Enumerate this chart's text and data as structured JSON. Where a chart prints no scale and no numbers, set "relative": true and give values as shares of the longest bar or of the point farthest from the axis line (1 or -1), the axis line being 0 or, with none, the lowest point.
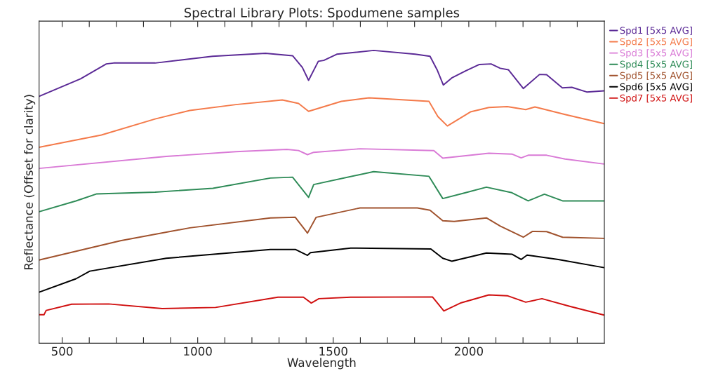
{
  "chart_data": {
    "type": "line",
    "title": "Spectral Library Plots: Spodumene samples",
    "xlabel": "Wavelength",
    "ylabel": "Reflectance (Offset for clarity)",
    "relative": true,
    "xlim": [
      415,
      2500
    ],
    "xticks": [
      500,
      {
        "value": 600,
        "label": null
      },
      {
        "value": 700,
        "label": null
      },
      {
        "value": 800,
        "label": null
      },
      {
        "value": 900,
        "label": null
      },
      1000,
      {
        "value": 1100,
        "label": null
      },
      {
        "value": 1200,
        "label": null
      },
      {
        "value": 1300,
        "label": null
      },
      {
        "value": 1400,
        "label": null
      },
      1500,
      {
        "value": 1600,
        "label": null
      },
      {
        "value": 1700,
        "label": null
      },
      {
        "value": 1800,
        "label": null
      },
      {
        "value": 1900,
        "label": null
      },
      2000,
      {
        "value": 2100,
        "label": null
      },
      {
        "value": 2200,
        "label": null
      },
      {
        "value": 2300,
        "label": null
      },
      {
        "value": 2400,
        "label": null
      }
    ],
    "grid": false,
    "legend": "top right",
    "marker": "none",
    "line_style": "solid",
    "series": [
      {
        "name": "Spd1 [5x5 AVG]",
        "color": "#5b2a96",
        "x": [
          415,
          568,
          663,
          690,
          843,
          1055,
          1250,
          1350,
          1386,
          1409,
          1445,
          1465,
          1513,
          1649,
          1802,
          1857,
          1883,
          1906,
          1937,
          1988,
          2039,
          2082,
          2116,
          2146,
          2201,
          2261,
          2287,
          2345,
          2380,
          2435,
          2499
        ],
        "values": [
          0.843,
          0.903,
          0.954,
          0.957,
          0.957,
          0.98,
          0.99,
          0.982,
          0.942,
          0.898,
          0.963,
          0.966,
          0.987,
          1.0,
          0.987,
          0.98,
          0.934,
          0.882,
          0.906,
          0.93,
          0.952,
          0.954,
          0.939,
          0.934,
          0.87,
          0.918,
          0.917,
          0.872,
          0.874,
          0.858,
          0.862
        ]
      },
      {
        "name": "Spd2 [5x5 AVG]",
        "color": "#f47a4a",
        "x": [
          415,
          645,
          843,
          971,
          1141,
          1312,
          1372,
          1409,
          1462,
          1530,
          1632,
          1853,
          1886,
          1921,
          2006,
          2074,
          2142,
          2210,
          2244,
          2355,
          2499
        ],
        "values": [
          0.669,
          0.711,
          0.766,
          0.795,
          0.815,
          0.831,
          0.819,
          0.792,
          0.807,
          0.826,
          0.838,
          0.826,
          0.774,
          0.742,
          0.79,
          0.805,
          0.808,
          0.798,
          0.807,
          0.781,
          0.75
        ]
      },
      {
        "name": "Spd3 [5x5 AVG]",
        "color": "#d97ad6",
        "x": [
          415,
          884,
          1141,
          1329,
          1372,
          1405,
          1428,
          1599,
          1871,
          1904,
          2074,
          2159,
          2193,
          2219,
          2287,
          2355,
          2499
        ],
        "values": [
          0.597,
          0.638,
          0.654,
          0.662,
          0.658,
          0.644,
          0.652,
          0.664,
          0.658,
          0.632,
          0.649,
          0.646,
          0.633,
          0.642,
          0.642,
          0.629,
          0.612
        ]
      },
      {
        "name": "Spd4 [5x5 AVG]",
        "color": "#2e8b57",
        "x": [
          415,
          551,
          628,
          843,
          1056,
          1268,
          1350,
          1409,
          1428,
          1649,
          1853,
          1904,
          1988,
          2065,
          2159,
          2219,
          2279,
          2346,
          2499
        ],
        "values": [
          0.449,
          0.486,
          0.51,
          0.516,
          0.529,
          0.564,
          0.567,
          0.498,
          0.542,
          0.586,
          0.57,
          0.494,
          0.514,
          0.533,
          0.514,
          0.486,
          0.509,
          0.486,
          0.486
        ]
      },
      {
        "name": "Spd5 [5x5 AVG]",
        "color": "#a0522d",
        "x": [
          415,
          715,
          971,
          1268,
          1360,
          1405,
          1437,
          1599,
          1810,
          1857,
          1904,
          1946,
          2065,
          2116,
          2201,
          2235,
          2287,
          2346,
          2499
        ],
        "values": [
          0.284,
          0.35,
          0.394,
          0.428,
          0.43,
          0.376,
          0.43,
          0.462,
          0.462,
          0.454,
          0.418,
          0.416,
          0.428,
          0.4,
          0.362,
          0.382,
          0.381,
          0.362,
          0.358
        ]
      },
      {
        "name": "Spd6 [5x5 AVG]",
        "color": "#000000",
        "x": [
          415,
          551,
          602,
          884,
          1268,
          1360,
          1405,
          1416,
          1564,
          1860,
          1904,
          1937,
          2065,
          2159,
          2193,
          2215,
          2330,
          2499
        ],
        "values": [
          0.174,
          0.22,
          0.246,
          0.29,
          0.32,
          0.32,
          0.3,
          0.309,
          0.325,
          0.322,
          0.29,
          0.28,
          0.308,
          0.304,
          0.286,
          0.301,
          0.286,
          0.258
        ]
      },
      {
        "name": "Spd7 [5x5 AVG]",
        "color": "#d01010",
        "x": [
          415,
          433,
          441,
          535,
          672,
          869,
          1066,
          1296,
          1390,
          1419,
          1447,
          1564,
          1866,
          1908,
          1972,
          2074,
          2142,
          2210,
          2270,
          2372,
          2499
        ],
        "values": [
          0.097,
          0.097,
          0.112,
          0.133,
          0.134,
          0.118,
          0.122,
          0.157,
          0.157,
          0.137,
          0.152,
          0.157,
          0.158,
          0.11,
          0.138,
          0.165,
          0.162,
          0.14,
          0.152,
          0.126,
          0.096
        ]
      }
    ]
  }
}
